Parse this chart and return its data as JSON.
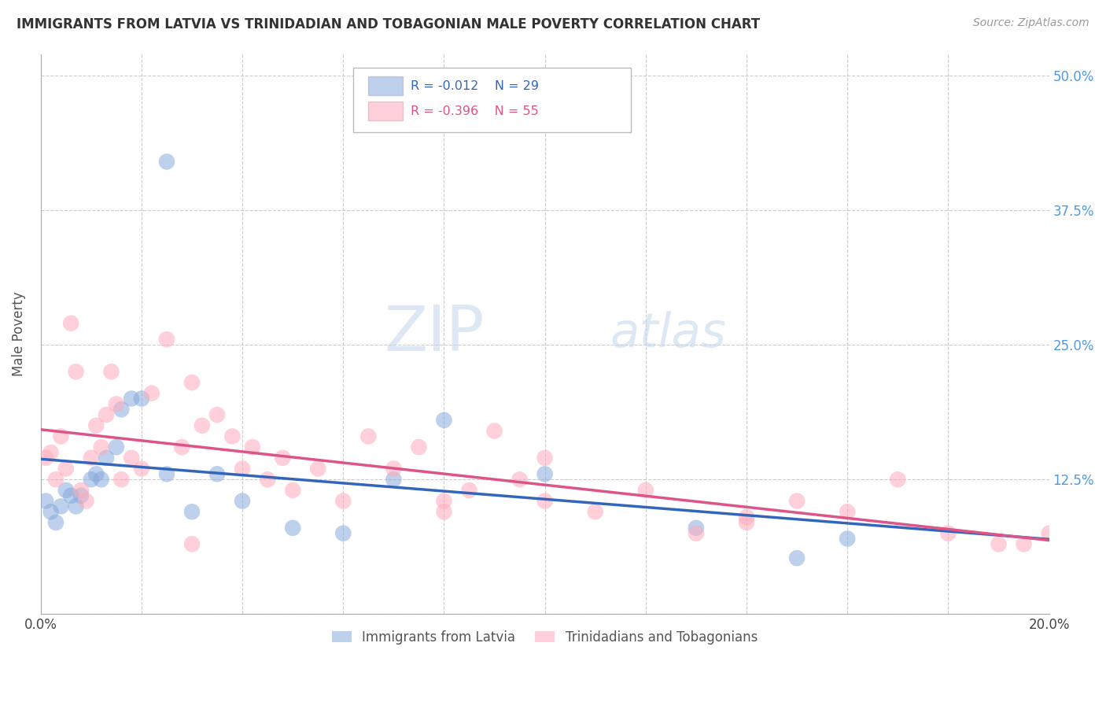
{
  "title": "IMMIGRANTS FROM LATVIA VS TRINIDADIAN AND TOBAGONIAN MALE POVERTY CORRELATION CHART",
  "source": "Source: ZipAtlas.com",
  "ylabel": "Male Poverty",
  "x_min": 0.0,
  "x_max": 0.2,
  "y_min": 0.0,
  "y_max": 0.52,
  "x_ticks": [
    0.0,
    0.02,
    0.04,
    0.06,
    0.08,
    0.1,
    0.12,
    0.14,
    0.16,
    0.18,
    0.2
  ],
  "x_tick_labels_show": [
    "0.0%",
    "",
    "",
    "",
    "",
    "",
    "",
    "",
    "",
    "",
    "20.0%"
  ],
  "y_ticks": [
    0.0,
    0.125,
    0.25,
    0.375,
    0.5
  ],
  "y_tick_labels": [
    "",
    "12.5%",
    "25.0%",
    "37.5%",
    "50.0%"
  ],
  "grid_color": "#cccccc",
  "background_color": "#ffffff",
  "blue_color": "#88aadd",
  "pink_color": "#ffaabb",
  "legend_R1": "R = -0.012",
  "legend_N1": "N = 29",
  "legend_R2": "R = -0.396",
  "legend_N2": "N = 55",
  "label1": "Immigrants from Latvia",
  "label2": "Trinidadians and Tobagonians",
  "watermark_zip": "ZIP",
  "watermark_atlas": "atlas",
  "blue_line_color": "#3366bb",
  "pink_line_color": "#dd5588",
  "blue_scatter_x": [
    0.001,
    0.002,
    0.003,
    0.004,
    0.005,
    0.006,
    0.007,
    0.008,
    0.01,
    0.011,
    0.012,
    0.013,
    0.015,
    0.016,
    0.018,
    0.02,
    0.025,
    0.03,
    0.035,
    0.04,
    0.05,
    0.06,
    0.07,
    0.08,
    0.1,
    0.13,
    0.15,
    0.16,
    0.025
  ],
  "blue_scatter_y": [
    0.105,
    0.095,
    0.085,
    0.1,
    0.115,
    0.11,
    0.1,
    0.11,
    0.125,
    0.13,
    0.125,
    0.145,
    0.155,
    0.19,
    0.2,
    0.2,
    0.13,
    0.095,
    0.13,
    0.105,
    0.08,
    0.075,
    0.125,
    0.18,
    0.13,
    0.08,
    0.052,
    0.07,
    0.42
  ],
  "pink_scatter_x": [
    0.001,
    0.002,
    0.003,
    0.004,
    0.005,
    0.006,
    0.007,
    0.008,
    0.009,
    0.01,
    0.011,
    0.012,
    0.013,
    0.014,
    0.015,
    0.016,
    0.018,
    0.02,
    0.022,
    0.025,
    0.028,
    0.03,
    0.032,
    0.035,
    0.038,
    0.04,
    0.042,
    0.045,
    0.048,
    0.05,
    0.055,
    0.06,
    0.065,
    0.07,
    0.075,
    0.08,
    0.085,
    0.09,
    0.095,
    0.1,
    0.11,
    0.12,
    0.13,
    0.14,
    0.15,
    0.16,
    0.17,
    0.18,
    0.19,
    0.195,
    0.03,
    0.08,
    0.14,
    0.2,
    0.1
  ],
  "pink_scatter_y": [
    0.145,
    0.15,
    0.125,
    0.165,
    0.135,
    0.27,
    0.225,
    0.115,
    0.105,
    0.145,
    0.175,
    0.155,
    0.185,
    0.225,
    0.195,
    0.125,
    0.145,
    0.135,
    0.205,
    0.255,
    0.155,
    0.215,
    0.175,
    0.185,
    0.165,
    0.135,
    0.155,
    0.125,
    0.145,
    0.115,
    0.135,
    0.105,
    0.165,
    0.135,
    0.155,
    0.095,
    0.115,
    0.17,
    0.125,
    0.145,
    0.095,
    0.115,
    0.075,
    0.085,
    0.105,
    0.095,
    0.125,
    0.075,
    0.065,
    0.065,
    0.065,
    0.105,
    0.09,
    0.075,
    0.105
  ]
}
